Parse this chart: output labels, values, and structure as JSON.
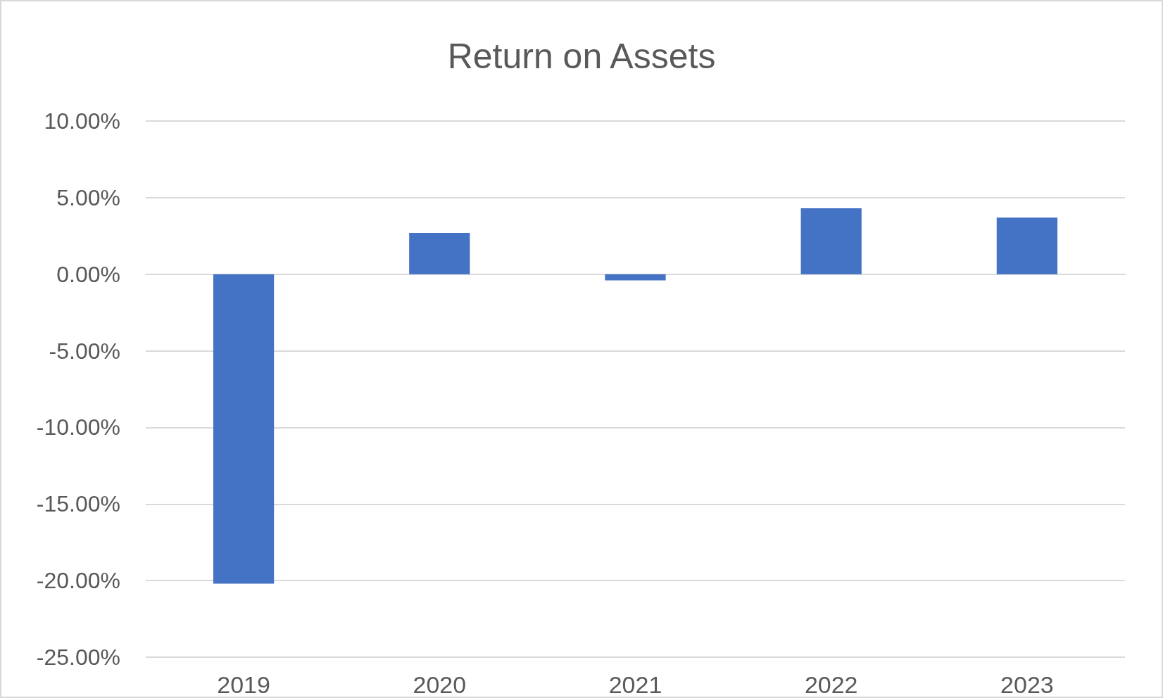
{
  "chart_data": {
    "type": "bar",
    "title": "Return on Assets",
    "categories": [
      "2019",
      "2020",
      "2021",
      "2022",
      "2023"
    ],
    "values": [
      -20.2,
      2.7,
      -0.4,
      4.3,
      3.7
    ],
    "color": "#4472c4",
    "ylim": [
      -25,
      10
    ],
    "yticks": [
      {
        "value": -25,
        "label": "-25.00%"
      },
      {
        "value": -20,
        "label": "-20.00%"
      },
      {
        "value": -15,
        "label": "-15.00%"
      },
      {
        "value": -10,
        "label": "-10.00%"
      },
      {
        "value": -5,
        "label": "-5.00%"
      },
      {
        "value": 0,
        "label": "0.00%"
      },
      {
        "value": 5,
        "label": "5.00%"
      },
      {
        "value": 10,
        "label": "10.00%"
      }
    ],
    "grid": "y"
  }
}
